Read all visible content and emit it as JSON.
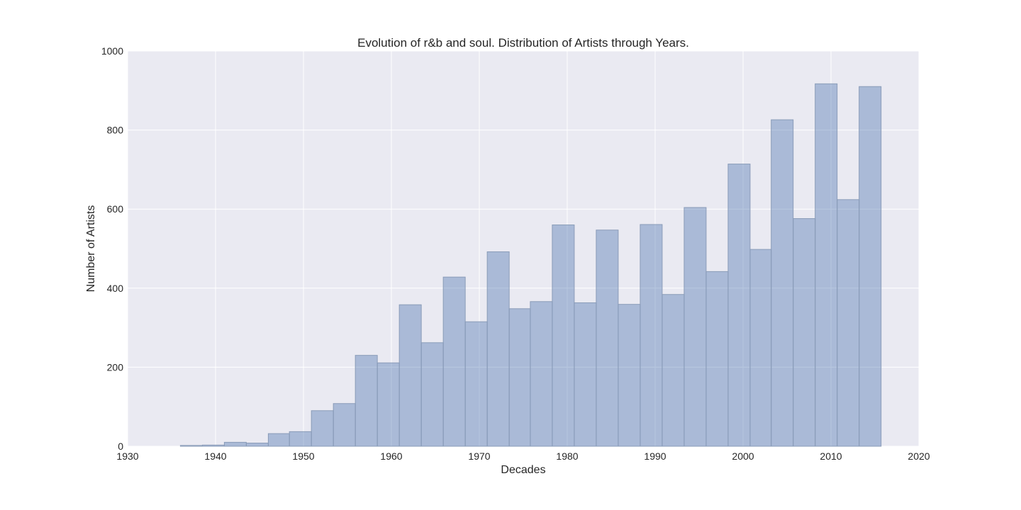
{
  "chart_data": {
    "type": "bar",
    "title": "Evolution of r&b and soul. Distribution of Artists through Years.",
    "xlabel": "Decades",
    "ylabel": "Number of Artists",
    "xlim": [
      1930,
      2020
    ],
    "ylim": [
      0,
      1000
    ],
    "xticks": [
      1930,
      1940,
      1950,
      1960,
      1970,
      1980,
      1990,
      2000,
      2010,
      2020
    ],
    "yticks": [
      0,
      200,
      400,
      600,
      800,
      1000
    ],
    "grid": true,
    "bins": [
      {
        "start": 1936.0,
        "end": 1938.5,
        "value": 2
      },
      {
        "start": 1938.5,
        "end": 1941.0,
        "value": 3
      },
      {
        "start": 1941.0,
        "end": 1943.5,
        "value": 10
      },
      {
        "start": 1943.5,
        "end": 1946.0,
        "value": 8
      },
      {
        "start": 1946.0,
        "end": 1948.4,
        "value": 32
      },
      {
        "start": 1948.4,
        "end": 1950.9,
        "value": 37
      },
      {
        "start": 1950.9,
        "end": 1953.4,
        "value": 90
      },
      {
        "start": 1953.4,
        "end": 1955.9,
        "value": 108
      },
      {
        "start": 1955.9,
        "end": 1958.4,
        "value": 230
      },
      {
        "start": 1958.4,
        "end": 1960.9,
        "value": 211
      },
      {
        "start": 1960.9,
        "end": 1963.4,
        "value": 358
      },
      {
        "start": 1963.4,
        "end": 1965.9,
        "value": 262
      },
      {
        "start": 1965.9,
        "end": 1968.4,
        "value": 428
      },
      {
        "start": 1968.4,
        "end": 1970.9,
        "value": 315
      },
      {
        "start": 1970.9,
        "end": 1973.4,
        "value": 492
      },
      {
        "start": 1973.4,
        "end": 1975.8,
        "value": 348
      },
      {
        "start": 1975.8,
        "end": 1978.3,
        "value": 366
      },
      {
        "start": 1978.3,
        "end": 1980.8,
        "value": 560
      },
      {
        "start": 1980.8,
        "end": 1983.3,
        "value": 363
      },
      {
        "start": 1983.3,
        "end": 1985.8,
        "value": 547
      },
      {
        "start": 1985.8,
        "end": 1988.3,
        "value": 359
      },
      {
        "start": 1988.3,
        "end": 1990.8,
        "value": 561
      },
      {
        "start": 1990.8,
        "end": 1993.3,
        "value": 384
      },
      {
        "start": 1993.3,
        "end": 1995.8,
        "value": 604
      },
      {
        "start": 1995.8,
        "end": 1998.3,
        "value": 442
      },
      {
        "start": 1998.3,
        "end": 2000.8,
        "value": 714
      },
      {
        "start": 2000.8,
        "end": 2003.2,
        "value": 498
      },
      {
        "start": 2003.2,
        "end": 2005.7,
        "value": 826
      },
      {
        "start": 2005.7,
        "end": 2008.2,
        "value": 576
      },
      {
        "start": 2008.2,
        "end": 2010.7,
        "value": 917
      },
      {
        "start": 2010.7,
        "end": 2013.2,
        "value": 624
      },
      {
        "start": 2013.2,
        "end": 2015.7,
        "value": 910
      }
    ],
    "colors": {
      "plot_background": "#eaeaf2",
      "grid": "#ffffff",
      "bar_fill": "#4c72b0",
      "bar_opacity": 0.4,
      "bar_edge": "#8a9cb8",
      "text": "#262626"
    }
  }
}
